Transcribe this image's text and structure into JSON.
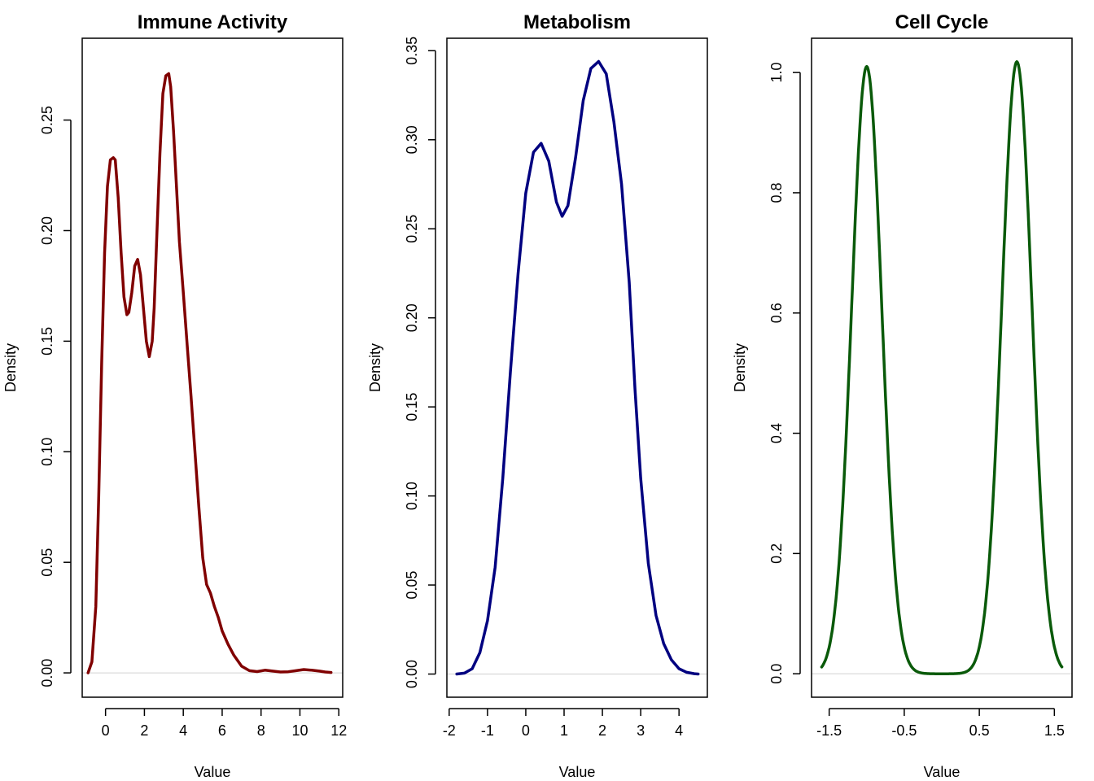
{
  "chart_data": [
    {
      "type": "line",
      "title": "Immune Activity",
      "xlabel": "Value",
      "ylabel": "Density",
      "color": "#800000",
      "xlim": [
        -1.2,
        12.2
      ],
      "ylim": [
        -0.011,
        0.287
      ],
      "xticks": [
        0,
        2,
        4,
        6,
        8,
        10,
        12
      ],
      "xtick_labels": [
        "0",
        "2",
        "4",
        "6",
        "8",
        "10",
        "12"
      ],
      "yticks": [
        0.0,
        0.05,
        0.1,
        0.15,
        0.2,
        0.25
      ],
      "ytick_labels": [
        "0.00",
        "0.05",
        "0.10",
        "0.15",
        "0.20",
        "0.25"
      ],
      "baseline": 0,
      "grid": false,
      "series": [
        {
          "x": [
            -0.9,
            -0.7,
            -0.5,
            -0.35,
            -0.2,
            -0.05,
            0.1,
            0.25,
            0.4,
            0.5,
            0.65,
            0.8,
            0.95,
            1.1,
            1.2,
            1.35,
            1.5,
            1.65,
            1.8,
            1.95,
            2.1,
            2.25,
            2.4,
            2.5,
            2.65,
            2.8,
            2.95,
            3.1,
            3.25,
            3.35,
            3.5,
            3.65,
            3.8,
            4.0,
            4.2,
            4.4,
            4.6,
            4.8,
            5.0,
            5.2,
            5.4,
            5.6,
            5.8,
            6.0,
            6.3,
            6.6,
            7.0,
            7.4,
            7.8,
            8.2,
            8.6,
            9.0,
            9.4,
            9.8,
            10.2,
            10.6,
            11.0,
            11.3,
            11.6
          ],
          "y": [
            0.0,
            0.005,
            0.03,
            0.08,
            0.14,
            0.19,
            0.22,
            0.232,
            0.233,
            0.232,
            0.215,
            0.19,
            0.17,
            0.162,
            0.163,
            0.172,
            0.184,
            0.187,
            0.18,
            0.165,
            0.15,
            0.143,
            0.15,
            0.165,
            0.2,
            0.235,
            0.262,
            0.27,
            0.271,
            0.265,
            0.245,
            0.22,
            0.195,
            0.172,
            0.148,
            0.125,
            0.1,
            0.075,
            0.052,
            0.04,
            0.036,
            0.03,
            0.025,
            0.019,
            0.013,
            0.008,
            0.003,
            0.001,
            0.0006,
            0.0012,
            0.0008,
            0.0004,
            0.0005,
            0.001,
            0.0015,
            0.0012,
            0.0008,
            0.0004,
            0.0002
          ]
        }
      ]
    },
    {
      "type": "line",
      "title": "Metabolism",
      "xlabel": "Value",
      "ylabel": "Density",
      "color": "#000080",
      "xlim": [
        -2.06,
        4.74
      ],
      "ylim": [
        -0.013,
        0.357
      ],
      "xticks": [
        -2,
        -1,
        0,
        1,
        2,
        3,
        4
      ],
      "xtick_labels": [
        "-2",
        "-1",
        "0",
        "1",
        "2",
        "3",
        "4"
      ],
      "yticks": [
        0.0,
        0.05,
        0.1,
        0.15,
        0.2,
        0.25,
        0.3,
        0.35
      ],
      "ytick_labels": [
        "0.00",
        "0.05",
        "0.10",
        "0.15",
        "0.20",
        "0.25",
        "0.30",
        "0.35"
      ],
      "baseline": 0,
      "grid": false,
      "series": [
        {
          "x": [
            -1.8,
            -1.6,
            -1.4,
            -1.2,
            -1.0,
            -0.8,
            -0.6,
            -0.4,
            -0.2,
            0.0,
            0.2,
            0.4,
            0.6,
            0.8,
            0.95,
            1.1,
            1.3,
            1.5,
            1.7,
            1.9,
            2.1,
            2.3,
            2.5,
            2.7,
            2.85,
            3.0,
            3.2,
            3.4,
            3.6,
            3.8,
            4.0,
            4.2,
            4.4,
            4.5
          ],
          "y": [
            0.0,
            0.0005,
            0.003,
            0.012,
            0.03,
            0.06,
            0.11,
            0.17,
            0.225,
            0.27,
            0.293,
            0.298,
            0.288,
            0.265,
            0.257,
            0.263,
            0.29,
            0.322,
            0.34,
            0.344,
            0.337,
            0.31,
            0.275,
            0.22,
            0.16,
            0.11,
            0.062,
            0.033,
            0.017,
            0.008,
            0.003,
            0.001,
            0.0002,
            0.0
          ]
        }
      ]
    },
    {
      "type": "line",
      "title": "Cell Cycle",
      "xlabel": "Value",
      "ylabel": "Density",
      "color": "#0a5a0a",
      "xlim": [
        -1.735,
        1.735
      ],
      "ylim": [
        -0.039,
        1.057
      ],
      "xticks": [
        -1.5,
        -0.5,
        0.5,
        1.5
      ],
      "xtick_labels": [
        "-1.5",
        "-0.5",
        "0.5",
        "1.5"
      ],
      "yticks": [
        0.0,
        0.2,
        0.4,
        0.6,
        0.8,
        1.0
      ],
      "ytick_labels": [
        "0.0",
        "0.2",
        "0.4",
        "0.6",
        "0.8",
        "1.0"
      ],
      "baseline": 0,
      "grid": false,
      "series": [
        {
          "mode": "bimodal",
          "x_range": [
            -1.6,
            1.6
          ],
          "peaks": [
            {
              "x": -1.0,
              "y": 1.01
            },
            {
              "x": 1.0,
              "y": 1.018
            }
          ],
          "sd": 0.2
        }
      ]
    }
  ]
}
